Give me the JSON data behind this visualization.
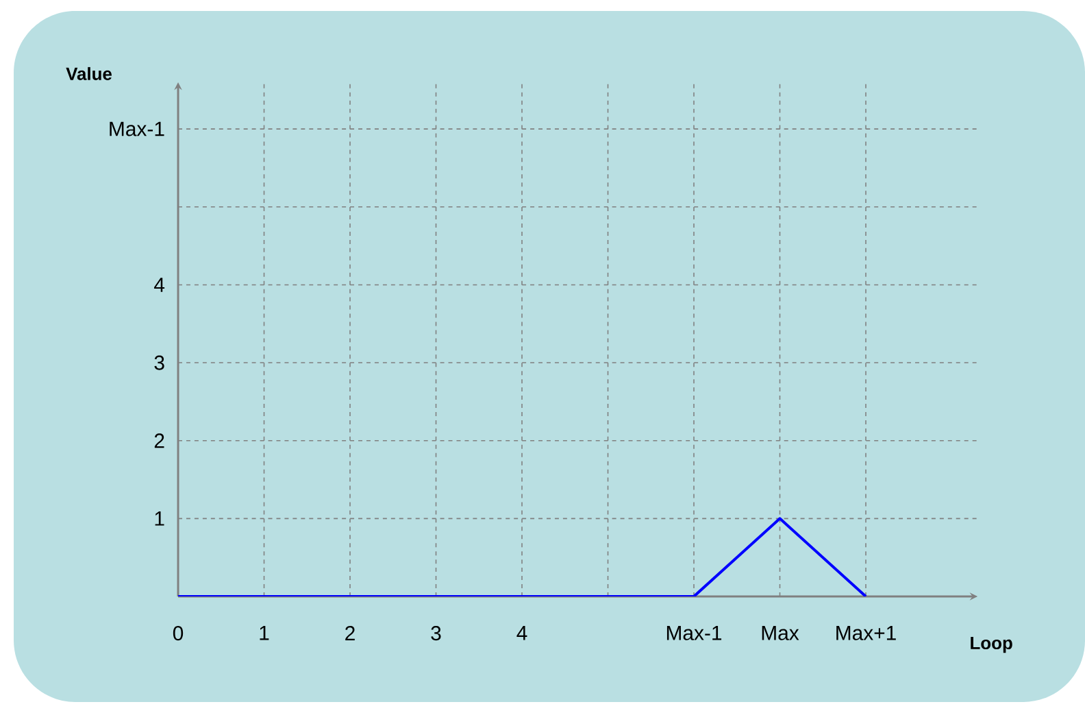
{
  "chart_data": {
    "type": "line",
    "xlabel": "Loop",
    "ylabel": "Value",
    "categories": [
      "0",
      "1",
      "2",
      "3",
      "4",
      null,
      "Max-1",
      "Max",
      "Max+1"
    ],
    "series": [
      {
        "color": "#0000ff",
        "values": [
          0,
          0,
          0,
          0,
          0,
          0,
          0,
          1,
          0
        ]
      }
    ],
    "ylim": [
      0,
      6.6
    ],
    "yticks": [
      {
        "value": 0,
        "label": null
      },
      1,
      2,
      3,
      4,
      {
        "value": 5,
        "label": null
      },
      {
        "value": 6,
        "label": "Max-1"
      }
    ],
    "grid": true,
    "marker": "none",
    "line_style": "solid"
  }
}
